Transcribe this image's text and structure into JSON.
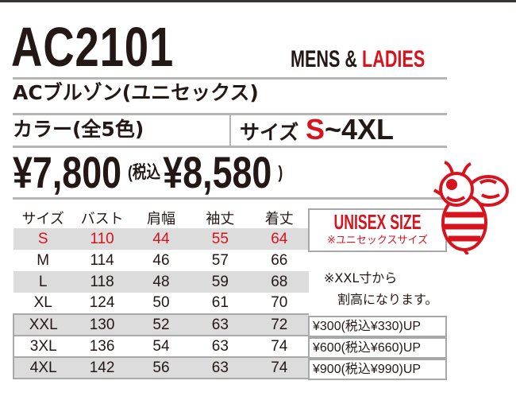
{
  "product": {
    "code": "AC2101",
    "gender_mens": "MENS &",
    "gender_ladies": "LADIES",
    "name": "ACブルゾン(ユニセックス)",
    "color_label": "カラー(全5色)",
    "size_label": "サイズ",
    "size_from": "S",
    "size_to": "~4XL",
    "price": "¥7,800",
    "tax_label": "(税込",
    "price_tax": "¥8,580",
    "tax_close": ")"
  },
  "table": {
    "headers": [
      "サイズ",
      "バスト",
      "肩幅",
      "袖丈",
      "着丈"
    ],
    "rows": [
      [
        "S",
        "110",
        "44",
        "55",
        "64"
      ],
      [
        "M",
        "114",
        "46",
        "57",
        "66"
      ],
      [
        "L",
        "118",
        "48",
        "59",
        "68"
      ],
      [
        "XL",
        "124",
        "50",
        "61",
        "70"
      ],
      [
        "XXL",
        "130",
        "52",
        "63",
        "72"
      ],
      [
        "3XL",
        "136",
        "54",
        "63",
        "74"
      ],
      [
        "4XL",
        "142",
        "56",
        "63",
        "74"
      ]
    ]
  },
  "unisex": {
    "title": "UNISEX SIZE",
    "subtitle": "※ユニセックスサイズ"
  },
  "note": {
    "line1": "※XXL寸から",
    "line2": "割高になります。"
  },
  "surcharges": [
    "¥300(税込¥330)UP",
    "¥600(税込¥660)UP",
    "¥900(税込¥990)UP"
  ],
  "colors": {
    "accent": "#d7131d",
    "text": "#231815",
    "row_gray": "#dcdcdc"
  },
  "icons": {
    "mascot": "bee-mascot-icon"
  }
}
